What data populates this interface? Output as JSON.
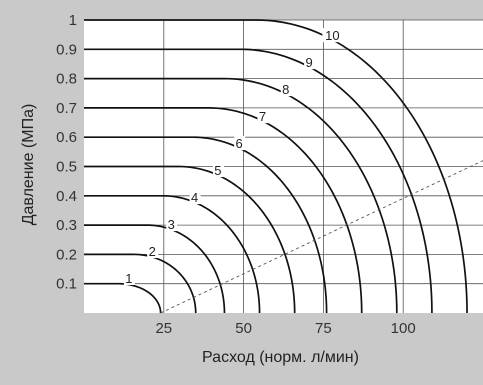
{
  "chart_data": {
    "type": "line",
    "title": "",
    "xlabel": "Расход (норм. л/мин)",
    "ylabel": "Давление (МПа)",
    "xlim": [
      0,
      125
    ],
    "ylim": [
      0,
      1.0
    ],
    "x_ticks": [
      25,
      50,
      75,
      100
    ],
    "x_tick_labels": [
      "25",
      "50",
      "75",
      "100"
    ],
    "y_ticks": [
      0.1,
      0.2,
      0.3,
      0.4,
      0.5,
      0.6,
      0.7,
      0.8,
      0.9,
      1.0
    ],
    "y_tick_labels": [
      "0.1",
      "0.2",
      "0.3",
      "0.4",
      "0.5",
      "0.6",
      "0.7",
      "0.8",
      "0.9",
      "1"
    ],
    "grid": true,
    "series": [
      {
        "name": "1",
        "pressure": 0.1,
        "flow_at_zero_pressure": 24
      },
      {
        "name": "2",
        "pressure": 0.2,
        "flow_at_zero_pressure": 35
      },
      {
        "name": "3",
        "pressure": 0.3,
        "flow_at_zero_pressure": 44
      },
      {
        "name": "4",
        "pressure": 0.4,
        "flow_at_zero_pressure": 55
      },
      {
        "name": "5",
        "pressure": 0.5,
        "flow_at_zero_pressure": 66
      },
      {
        "name": "6",
        "pressure": 0.6,
        "flow_at_zero_pressure": 76
      },
      {
        "name": "7",
        "pressure": 0.7,
        "flow_at_zero_pressure": 87
      },
      {
        "name": "8",
        "pressure": 0.8,
        "flow_at_zero_pressure": 98
      },
      {
        "name": "9",
        "pressure": 0.9,
        "flow_at_zero_pressure": 109
      },
      {
        "name": "10",
        "pressure": 1.0,
        "flow_at_zero_pressure": 120
      }
    ],
    "critical_line": {
      "style": "dashed",
      "x": [
        24,
        125
      ],
      "y": [
        0,
        0.52
      ]
    }
  }
}
